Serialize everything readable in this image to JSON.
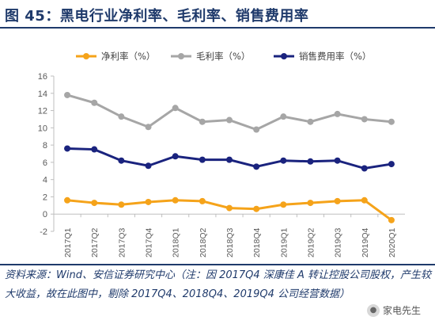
{
  "title": "图 45：黑电行业净利率、毛利率、销售费用率",
  "source_note": "资料来源：Wind、安信证券研究中心（注：因 2017Q4 深康佳 A 转让控股公司股权，产生较大收益，故在此图中，剔除 2017Q4、2018Q4、2019Q4 公司经营数据）",
  "watermark": "家电先生",
  "chart_data": {
    "type": "line",
    "categories": [
      "2017Q1",
      "2017Q2",
      "2017Q3",
      "2017Q4",
      "2018Q1",
      "2018Q2",
      "2018Q3",
      "2018Q4",
      "2019Q1",
      "2019Q2",
      "2019Q3",
      "2019Q4",
      "2020Q1"
    ],
    "ylim": [
      -2,
      16
    ],
    "yticks": [
      -2,
      0,
      2,
      4,
      6,
      8,
      10,
      12,
      14,
      16
    ],
    "grid": false,
    "legend_position": "top",
    "series": [
      {
        "name": "净利率（%）",
        "color": "#f5a31a",
        "values": [
          1.6,
          1.3,
          1.1,
          1.4,
          1.6,
          1.5,
          0.7,
          0.6,
          1.1,
          1.3,
          1.5,
          1.6,
          -0.7
        ]
      },
      {
        "name": "毛利率（%）",
        "color": "#a6a6a6",
        "values": [
          13.8,
          12.9,
          11.3,
          10.1,
          12.3,
          10.7,
          10.9,
          9.8,
          11.3,
          10.7,
          11.6,
          11.0,
          10.7
        ]
      },
      {
        "name": "销售费用率（%）",
        "color": "#1a237e",
        "values": [
          7.6,
          7.5,
          6.2,
          5.6,
          6.7,
          6.3,
          6.3,
          5.5,
          6.2,
          6.1,
          6.2,
          5.3,
          5.8
        ]
      }
    ]
  }
}
